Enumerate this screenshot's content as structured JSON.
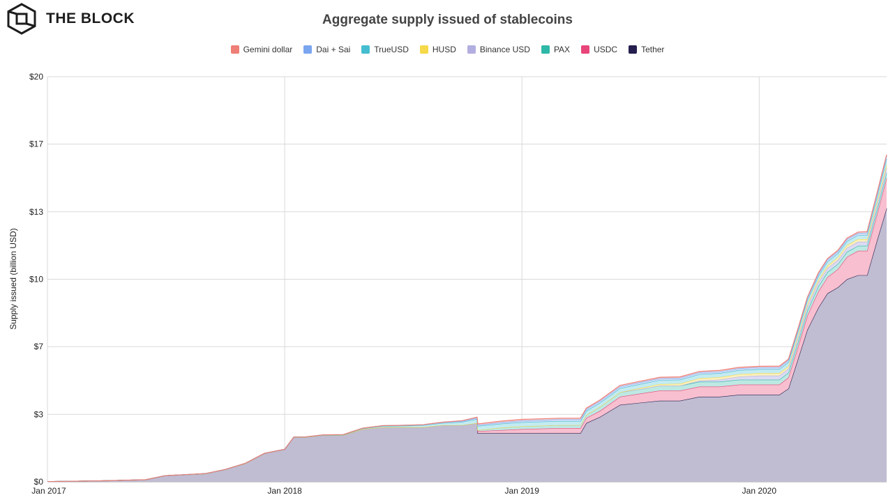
{
  "brand": {
    "name": "THE BLOCK",
    "logo_icon": "hexagon-cube-logo"
  },
  "chart_data": {
    "type": "area",
    "stacked": true,
    "title": "Aggregate supply issued of stablecoins",
    "ylabel": "Supply issued (billion USD)",
    "xlabel": "",
    "ylim": [
      0,
      20
    ],
    "xlim": [
      "2017-01-01",
      "2020-07-15"
    ],
    "grid": true,
    "legend_position": "top-center",
    "y_ticks": [
      "$0",
      "$3",
      "$7",
      "$10",
      "$13",
      "$17",
      "$20"
    ],
    "x_ticks": [
      "Jan 2017",
      "Jan 2018",
      "Jan 2019",
      "Jan 2020"
    ],
    "series": [
      {
        "name": "Tether",
        "color": "#241f4f",
        "fill": "#c0bcd2",
        "x": [
          "2017-01-01",
          "2017-04-01",
          "2017-06-01",
          "2017-07-01",
          "2017-09-01",
          "2017-10-01",
          "2017-11-01",
          "2017-12-01",
          "2018-01-01",
          "2018-01-15",
          "2018-02-01",
          "2018-03-01",
          "2018-04-01",
          "2018-05-01",
          "2018-06-01",
          "2018-07-01",
          "2018-08-01",
          "2018-09-01",
          "2018-10-01",
          "2018-10-24",
          "2018-10-25",
          "2018-12-01",
          "2019-01-01",
          "2019-03-01",
          "2019-04-01",
          "2019-04-10",
          "2019-05-01",
          "2019-06-01",
          "2019-07-01",
          "2019-08-01",
          "2019-09-01",
          "2019-10-01",
          "2019-11-01",
          "2019-12-01",
          "2020-01-01",
          "2020-02-01",
          "2020-02-15",
          "2020-03-01",
          "2020-03-15",
          "2020-04-01",
          "2020-04-15",
          "2020-05-01",
          "2020-05-15",
          "2020-06-01",
          "2020-06-15",
          "2020-07-01",
          "2020-07-15"
        ],
        "values": [
          0.01,
          0.05,
          0.1,
          0.3,
          0.4,
          0.6,
          0.9,
          1.4,
          1.6,
          2.2,
          2.2,
          2.3,
          2.3,
          2.6,
          2.7,
          2.7,
          2.7,
          2.8,
          2.8,
          2.9,
          2.4,
          2.4,
          2.4,
          2.4,
          2.4,
          2.9,
          3.2,
          3.8,
          3.9,
          4.0,
          4.0,
          4.2,
          4.2,
          4.3,
          4.3,
          4.3,
          4.6,
          6.1,
          7.5,
          8.6,
          9.3,
          9.6,
          10.0,
          10.2,
          10.2,
          12.0,
          13.5
        ]
      },
      {
        "name": "USDC",
        "color": "#e8457a",
        "fill": "#f7bfcf",
        "x": [
          "2017-01-01",
          "2018-09-01",
          "2018-10-01",
          "2018-10-24",
          "2018-10-25",
          "2018-12-01",
          "2019-01-01",
          "2019-03-01",
          "2019-04-01",
          "2019-04-10",
          "2019-05-01",
          "2019-06-01",
          "2019-07-01",
          "2019-08-01",
          "2019-09-01",
          "2019-10-01",
          "2019-11-01",
          "2019-12-01",
          "2020-01-01",
          "2020-02-01",
          "2020-02-15",
          "2020-03-01",
          "2020-03-15",
          "2020-04-01",
          "2020-04-15",
          "2020-05-01",
          "2020-05-15",
          "2020-06-01",
          "2020-06-15",
          "2020-07-01",
          "2020-07-15"
        ],
        "values": [
          0,
          0,
          0,
          0,
          0.1,
          0.15,
          0.2,
          0.25,
          0.25,
          0.25,
          0.3,
          0.4,
          0.45,
          0.5,
          0.5,
          0.5,
          0.5,
          0.5,
          0.5,
          0.5,
          0.55,
          0.6,
          0.7,
          0.8,
          0.8,
          0.9,
          1.1,
          1.2,
          1.2,
          1.3,
          1.5
        ]
      },
      {
        "name": "PAX",
        "color": "#2eb8a8",
        "fill": "#bde9e3",
        "x": [
          "2017-01-01",
          "2018-09-01",
          "2018-10-01",
          "2018-10-24",
          "2018-10-25",
          "2018-12-01",
          "2019-01-01",
          "2019-03-01",
          "2019-04-01",
          "2019-04-10",
          "2019-05-01",
          "2019-06-01",
          "2019-07-01",
          "2019-08-01",
          "2019-09-01",
          "2019-10-01",
          "2019-11-01",
          "2019-12-01",
          "2020-01-01",
          "2020-02-01",
          "2020-02-15",
          "2020-03-01",
          "2020-03-15",
          "2020-04-01",
          "2020-04-15",
          "2020-05-01",
          "2020-05-15",
          "2020-06-01",
          "2020-06-15",
          "2020-07-01",
          "2020-07-15"
        ],
        "values": [
          0,
          0,
          0,
          0,
          0.05,
          0.12,
          0.14,
          0.15,
          0.15,
          0.15,
          0.2,
          0.22,
          0.22,
          0.24,
          0.24,
          0.24,
          0.24,
          0.24,
          0.24,
          0.24,
          0.24,
          0.24,
          0.24,
          0.25,
          0.25,
          0.25,
          0.25,
          0.25,
          0.25,
          0.25,
          0.25
        ]
      },
      {
        "name": "Binance USD",
        "color": "#b3aee0",
        "fill": "#dcdaf2",
        "x": [
          "2017-01-01",
          "2019-09-01",
          "2019-10-01",
          "2019-11-01",
          "2019-12-01",
          "2020-01-01",
          "2020-02-01",
          "2020-02-15",
          "2020-03-01",
          "2020-03-15",
          "2020-04-01",
          "2020-04-15",
          "2020-05-01",
          "2020-05-15",
          "2020-06-01",
          "2020-06-15",
          "2020-07-01",
          "2020-07-15"
        ],
        "values": [
          0,
          0,
          0.05,
          0.1,
          0.15,
          0.2,
          0.2,
          0.2,
          0.2,
          0.2,
          0.2,
          0.2,
          0.2,
          0.2,
          0.2,
          0.2,
          0.22,
          0.25
        ]
      },
      {
        "name": "HUSD",
        "color": "#f5d94a",
        "fill": "#fbf0bc",
        "x": [
          "2017-01-01",
          "2019-06-01",
          "2019-07-01",
          "2019-08-01",
          "2019-09-01",
          "2019-10-01",
          "2019-11-01",
          "2019-12-01",
          "2020-01-01",
          "2020-02-01",
          "2020-02-15",
          "2020-03-01",
          "2020-03-15",
          "2020-04-01",
          "2020-04-15",
          "2020-05-01",
          "2020-05-15",
          "2020-06-01",
          "2020-06-15",
          "2020-07-01",
          "2020-07-15"
        ],
        "values": [
          0,
          0,
          0.05,
          0.08,
          0.1,
          0.12,
          0.12,
          0.12,
          0.12,
          0.12,
          0.12,
          0.12,
          0.12,
          0.12,
          0.12,
          0.13,
          0.13,
          0.13,
          0.13,
          0.14,
          0.15
        ]
      },
      {
        "name": "TrueUSD",
        "color": "#45bdd0",
        "fill": "#c3ebf1",
        "x": [
          "2017-01-01",
          "2018-03-01",
          "2018-04-01",
          "2018-05-01",
          "2018-06-01",
          "2018-07-01",
          "2018-08-01",
          "2018-09-01",
          "2018-10-01",
          "2018-10-24",
          "2018-10-25",
          "2018-12-01",
          "2019-01-01",
          "2019-03-01",
          "2019-04-01",
          "2019-04-10",
          "2019-05-01",
          "2019-06-01",
          "2019-07-01",
          "2019-08-01",
          "2019-09-01",
          "2019-10-01",
          "2019-11-01",
          "2019-12-01",
          "2020-01-01",
          "2020-02-01",
          "2020-02-15",
          "2020-03-01",
          "2020-03-15",
          "2020-04-01",
          "2020-04-15",
          "2020-05-01",
          "2020-05-15",
          "2020-06-01",
          "2020-06-15",
          "2020-07-01",
          "2020-07-15"
        ],
        "values": [
          0,
          0.01,
          0.02,
          0.03,
          0.05,
          0.06,
          0.08,
          0.1,
          0.15,
          0.2,
          0.2,
          0.2,
          0.2,
          0.2,
          0.2,
          0.2,
          0.2,
          0.2,
          0.2,
          0.2,
          0.2,
          0.2,
          0.2,
          0.2,
          0.2,
          0.2,
          0.2,
          0.2,
          0.2,
          0.2,
          0.2,
          0.2,
          0.2,
          0.2,
          0.2,
          0.25,
          0.3
        ]
      },
      {
        "name": "Dai + Sai",
        "color": "#7aa6f0",
        "fill": "#cfdcf8",
        "x": [
          "2017-01-01",
          "2018-01-01",
          "2018-06-01",
          "2018-10-01",
          "2018-12-01",
          "2019-01-01",
          "2019-03-01",
          "2019-04-01",
          "2019-04-10",
          "2019-05-01",
          "2019-06-01",
          "2019-07-01",
          "2019-08-01",
          "2019-09-01",
          "2019-10-01",
          "2019-11-01",
          "2019-12-01",
          "2020-01-01",
          "2020-02-01",
          "2020-02-15",
          "2020-03-01",
          "2020-03-15",
          "2020-04-01",
          "2020-04-15",
          "2020-05-01",
          "2020-05-15",
          "2020-06-01",
          "2020-06-15",
          "2020-07-01",
          "2020-07-15"
        ],
        "values": [
          0,
          0,
          0.02,
          0.05,
          0.07,
          0.08,
          0.09,
          0.09,
          0.09,
          0.09,
          0.09,
          0.09,
          0.09,
          0.09,
          0.09,
          0.09,
          0.09,
          0.09,
          0.1,
          0.1,
          0.1,
          0.1,
          0.1,
          0.1,
          0.1,
          0.1,
          0.1,
          0.12,
          0.15,
          0.15
        ]
      },
      {
        "name": "Gemini dollar",
        "color": "#ee7f76",
        "fill": "#f9d4d0",
        "x": [
          "2017-01-01",
          "2018-09-01",
          "2018-10-01",
          "2018-10-24",
          "2018-10-25",
          "2018-12-01",
          "2019-01-01",
          "2019-03-01",
          "2019-04-01",
          "2019-04-10",
          "2019-05-01",
          "2019-06-01",
          "2019-07-01",
          "2019-08-01",
          "2019-09-01",
          "2019-10-01",
          "2019-11-01",
          "2019-12-01",
          "2020-01-01",
          "2020-02-01",
          "2020-02-15",
          "2020-03-01",
          "2020-03-15",
          "2020-04-01",
          "2020-04-15",
          "2020-05-01",
          "2020-05-15",
          "2020-06-01",
          "2020-06-15",
          "2020-07-01",
          "2020-07-15"
        ],
        "values": [
          0,
          0,
          0.02,
          0.03,
          0.05,
          0.06,
          0.06,
          0.05,
          0.05,
          0.05,
          0.05,
          0.05,
          0.05,
          0.05,
          0.05,
          0.05,
          0.05,
          0.05,
          0.05,
          0.05,
          0.05,
          0.05,
          0.05,
          0.05,
          0.05,
          0.05,
          0.05,
          0.05,
          0.05,
          0.05,
          0.05
        ]
      }
    ],
    "legend_order": [
      "Gemini dollar",
      "Dai + Sai",
      "TrueUSD",
      "HUSD",
      "Binance USD",
      "PAX",
      "USDC",
      "Tether"
    ]
  }
}
